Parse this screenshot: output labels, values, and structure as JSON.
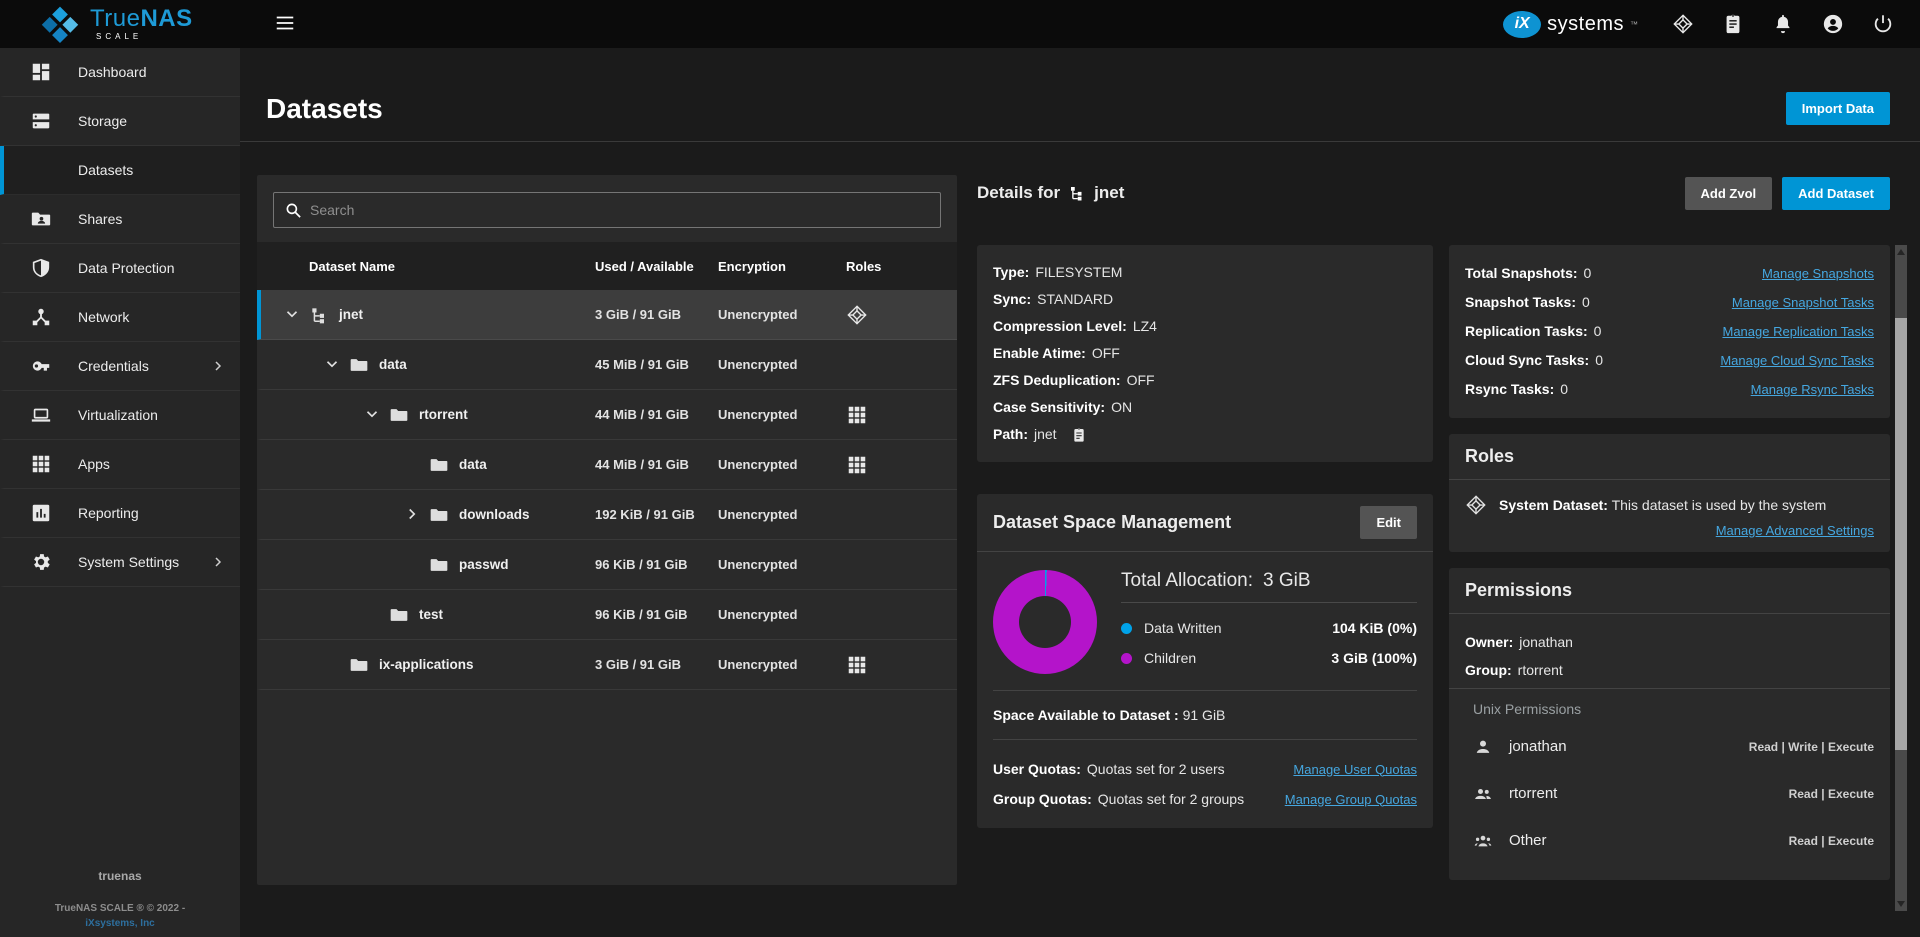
{
  "colors": {
    "accent": "#0095d5",
    "link": "#45a7e0",
    "donut_children": "#b414ca",
    "donut_data_written": "#00a2e8"
  },
  "topbar": {
    "brand": {
      "name_light": "True",
      "name_bold": "NAS",
      "sub": "SCALE"
    },
    "ix": {
      "mark": "iX",
      "text": "systems",
      "tm": "™"
    },
    "icons": [
      "truenas-flake-icon",
      "jobs-clipboard-icon",
      "notifications-bell-icon",
      "user-account-icon",
      "power-icon"
    ]
  },
  "sidebar": {
    "items": [
      {
        "label": "Dashboard",
        "icon": "dashboard",
        "active": false,
        "chevron": false
      },
      {
        "label": "Storage",
        "icon": "storage",
        "active": false,
        "chevron": false
      },
      {
        "label": "Datasets",
        "icon": "datasets",
        "active": true,
        "chevron": false
      },
      {
        "label": "Shares",
        "icon": "shares",
        "active": false,
        "chevron": false
      },
      {
        "label": "Data Protection",
        "icon": "shield",
        "active": false,
        "chevron": false
      },
      {
        "label": "Network",
        "icon": "network",
        "active": false,
        "chevron": false
      },
      {
        "label": "Credentials",
        "icon": "key",
        "active": false,
        "chevron": true
      },
      {
        "label": "Virtualization",
        "icon": "laptop",
        "active": false,
        "chevron": false
      },
      {
        "label": "Apps",
        "icon": "apps",
        "active": false,
        "chevron": false
      },
      {
        "label": "Reporting",
        "icon": "reporting",
        "active": false,
        "chevron": false
      },
      {
        "label": "System Settings",
        "icon": "gear",
        "active": false,
        "chevron": true
      }
    ],
    "footer": {
      "hostname": "truenas",
      "copyright": "TrueNAS SCALE ® © 2022 -",
      "company": "iXsystems, Inc"
    }
  },
  "page": {
    "title": "Datasets",
    "import_button": "Import Data"
  },
  "table": {
    "search_placeholder": "Search",
    "columns": [
      "Dataset Name",
      "Used / Available",
      "Encryption",
      "Roles"
    ],
    "rows": [
      {
        "name": "jnet",
        "indent": 0,
        "expander": "down",
        "icon": "dataset",
        "used": "3 GiB / 91 GiB",
        "encryption": "Unencrypted",
        "role_icon": "flake",
        "selected": true
      },
      {
        "name": "data",
        "indent": 1,
        "expander": "down",
        "icon": "folder",
        "used": "45 MiB / 91 GiB",
        "encryption": "Unencrypted",
        "role_icon": null,
        "selected": false
      },
      {
        "name": "rtorrent",
        "indent": 2,
        "expander": "down",
        "icon": "folder",
        "used": "44 MiB / 91 GiB",
        "encryption": "Unencrypted",
        "role_icon": "apps",
        "selected": false
      },
      {
        "name": "data",
        "indent": 3,
        "expander": null,
        "icon": "folder",
        "used": "44 MiB / 91 GiB",
        "encryption": "Unencrypted",
        "role_icon": "apps",
        "selected": false
      },
      {
        "name": "downloads",
        "indent": 3,
        "expander": "right",
        "icon": "folder",
        "used": "192 KiB / 91 GiB",
        "encryption": "Unencrypted",
        "role_icon": null,
        "selected": false
      },
      {
        "name": "passwd",
        "indent": 3,
        "expander": null,
        "icon": "folder",
        "used": "96 KiB / 91 GiB",
        "encryption": "Unencrypted",
        "role_icon": null,
        "selected": false
      },
      {
        "name": "test",
        "indent": 2,
        "expander": null,
        "icon": "folder",
        "used": "96 KiB / 91 GiB",
        "encryption": "Unencrypted",
        "role_icon": null,
        "selected": false
      },
      {
        "name": "ix-applications",
        "indent": 1,
        "expander": null,
        "icon": "folder",
        "used": "3 GiB / 91 GiB",
        "encryption": "Unencrypted",
        "role_icon": "apps",
        "selected": false
      }
    ]
  },
  "details": {
    "title_prefix": "Details for",
    "dataset_name": "jnet",
    "buttons": {
      "add_zvol": "Add Zvol",
      "add_dataset": "Add Dataset"
    },
    "properties": [
      {
        "label": "Type:",
        "value": "FILESYSTEM",
        "icon": null
      },
      {
        "label": "Sync:",
        "value": "STANDARD",
        "icon": null
      },
      {
        "label": "Compression Level:",
        "value": "LZ4",
        "icon": null
      },
      {
        "label": "Enable Atime:",
        "value": "OFF",
        "icon": null
      },
      {
        "label": "ZFS Deduplication:",
        "value": "OFF",
        "icon": null
      },
      {
        "label": "Case Sensitivity:",
        "value": "ON",
        "icon": null
      },
      {
        "label": "Path:",
        "value": "jnet",
        "icon": "clipboard-small"
      }
    ],
    "space": {
      "title": "Dataset Space Management",
      "edit_button": "Edit",
      "total_label": "Total Allocation:",
      "total_value": "3 GiB",
      "legend": [
        {
          "label": "Data Written",
          "value": "104 KiB (0%)",
          "color": "#00a2e8"
        },
        {
          "label": "Children",
          "value": "3 GiB (100%)",
          "color": "#b414ca"
        }
      ],
      "available_label": "Space Available to Dataset :",
      "available_value": "91 GiB",
      "quotas": [
        {
          "label": "User Quotas:",
          "value": "Quotas set for 2 users",
          "link": "Manage User Quotas"
        },
        {
          "label": "Group Quotas:",
          "value": "Quotas set for 2 groups",
          "link": "Manage Group Quotas"
        }
      ]
    },
    "tasks": [
      {
        "label": "Total Snapshots:",
        "value": "0",
        "link": "Manage Snapshots"
      },
      {
        "label": "Snapshot Tasks:",
        "value": "0",
        "link": "Manage Snapshot Tasks"
      },
      {
        "label": "Replication Tasks:",
        "value": "0",
        "link": "Manage Replication Tasks"
      },
      {
        "label": "Cloud Sync Tasks:",
        "value": "0",
        "link": "Manage Cloud Sync Tasks"
      },
      {
        "label": "Rsync Tasks:",
        "value": "0",
        "link": "Manage Rsync Tasks"
      }
    ],
    "roles": {
      "title": "Roles",
      "item_label": "System Dataset:",
      "item_text": "This dataset is used by the system",
      "link": "Manage Advanced Settings"
    },
    "permissions": {
      "title": "Permissions",
      "owner_label": "Owner:",
      "owner": "jonathan",
      "group_label": "Group:",
      "group": "rtorrent",
      "section": "Unix Permissions",
      "entries": [
        {
          "icon": "person",
          "name": "jonathan",
          "perms": "Read | Write | Execute"
        },
        {
          "icon": "people",
          "name": "rtorrent",
          "perms": "Read | Execute"
        },
        {
          "icon": "group",
          "name": "Other",
          "perms": "Read | Execute"
        }
      ]
    }
  }
}
